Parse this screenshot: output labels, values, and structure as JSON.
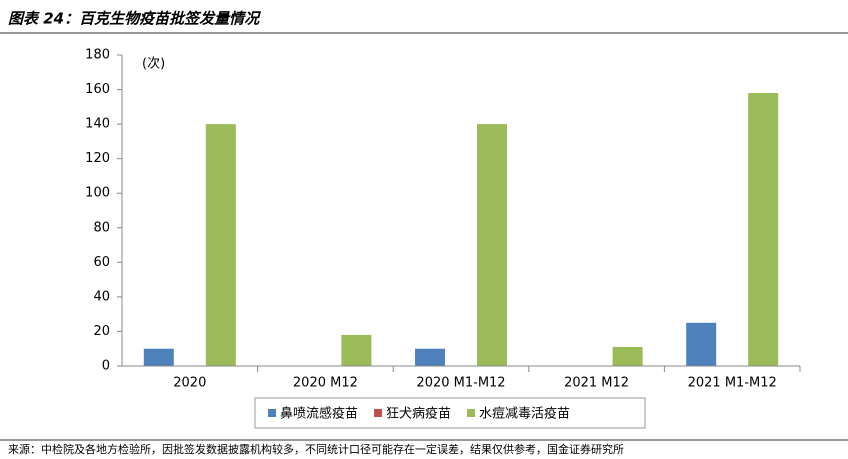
{
  "chart_data": {
    "type": "bar",
    "title": "图表 24：百克生物疫苗批签发量情况",
    "unit_label": "(次)",
    "categories": [
      "2020",
      "2020 M12",
      "2020 M1-M12",
      "2021 M12",
      "2021 M1-M12"
    ],
    "series": [
      {
        "name": "鼻喷流感疫苗",
        "color": "#4f81bd",
        "values": [
          10,
          0,
          10,
          0,
          25
        ]
      },
      {
        "name": "狂犬病疫苗",
        "color": "#c0504d",
        "values": [
          0,
          0,
          0,
          0,
          0
        ]
      },
      {
        "name": "水痘减毒活疫苗",
        "color": "#9bbb59",
        "values": [
          140,
          18,
          140,
          11,
          158
        ]
      }
    ],
    "ylim": [
      0,
      180
    ],
    "yticks": [
      0,
      20,
      40,
      60,
      80,
      100,
      120,
      140,
      160,
      180
    ],
    "legend": "bottom",
    "source": "来源：中检院及各地方检验所，因批签发数据披露机构较多，不同统计口径可能存在一定误差，结果仅供参考，国金证券研究所"
  }
}
